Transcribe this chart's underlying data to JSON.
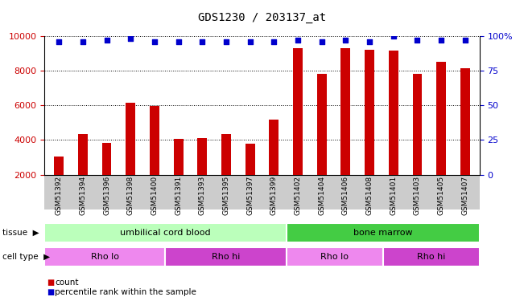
{
  "title": "GDS1230 / 203137_at",
  "categories": [
    "GSM51392",
    "GSM51394",
    "GSM51396",
    "GSM51398",
    "GSM51400",
    "GSM51391",
    "GSM51393",
    "GSM51395",
    "GSM51397",
    "GSM51399",
    "GSM51402",
    "GSM51404",
    "GSM51406",
    "GSM51408",
    "GSM51401",
    "GSM51403",
    "GSM51405",
    "GSM51407"
  ],
  "bar_values": [
    3050,
    4350,
    3850,
    6150,
    5950,
    4050,
    4100,
    4350,
    3800,
    5200,
    9300,
    7800,
    9300,
    9200,
    9150,
    7800,
    8500,
    8150
  ],
  "percentile_values": [
    96,
    96,
    97,
    98,
    96,
    96,
    96,
    96,
    96,
    96,
    97,
    96,
    97,
    96,
    100,
    97,
    97,
    97
  ],
  "bar_color": "#cc0000",
  "dot_color": "#0000cc",
  "ylim_left": [
    2000,
    10000
  ],
  "ylim_right": [
    0,
    100
  ],
  "yticks_left": [
    2000,
    4000,
    6000,
    8000,
    10000
  ],
  "ytick_labels_right": [
    "0",
    "25",
    "50",
    "75",
    "100%"
  ],
  "grid_values": [
    4000,
    6000,
    8000,
    10000
  ],
  "tissue_labels": [
    {
      "text": "umbilical cord blood",
      "start": 0,
      "end": 9,
      "color": "#bbffbb"
    },
    {
      "text": "bone marrow",
      "start": 10,
      "end": 17,
      "color": "#44cc44"
    }
  ],
  "cell_type_labels": [
    {
      "text": "Rho lo",
      "start": 0,
      "end": 4,
      "color": "#ee88ee"
    },
    {
      "text": "Rho hi",
      "start": 5,
      "end": 9,
      "color": "#cc44cc"
    },
    {
      "text": "Rho lo",
      "start": 10,
      "end": 13,
      "color": "#ee88ee"
    },
    {
      "text": "Rho hi",
      "start": 14,
      "end": 17,
      "color": "#cc44cc"
    }
  ],
  "background_color": "#ffffff",
  "plot_bg_color": "#ffffff",
  "xtick_bg_color": "#cccccc",
  "bar_width": 0.4,
  "figsize": [
    6.51,
    3.75
  ],
  "dpi": 100
}
